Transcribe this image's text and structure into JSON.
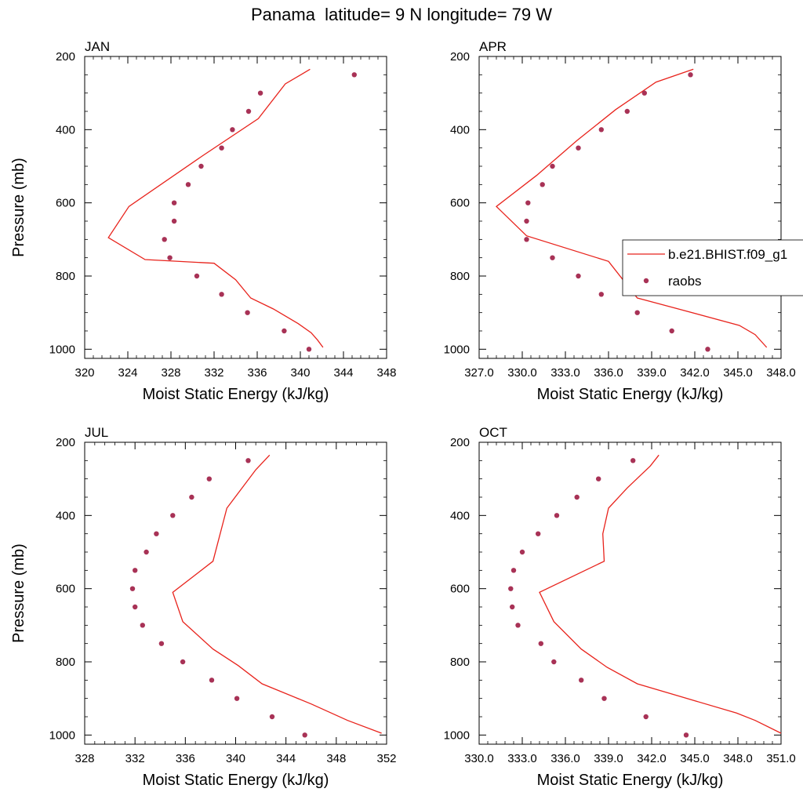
{
  "figure_title": "Panama  latitude= 9 N longitude= 79 W",
  "legend": {
    "model_label": "b.e21.BHIST.f09_g1",
    "obs_label": "raobs",
    "model_color": "#e8231c",
    "obs_color": "#a83256",
    "placement": "right-middle (over APR panel)"
  },
  "chart_data": [
    {
      "type": "line+scatter",
      "panel": "JAN",
      "title": "JAN",
      "xlabel": "Moist Static Energy (kJ/kg)",
      "ylabel": "Pressure (mb)",
      "xlim": [
        320,
        348
      ],
      "ylim": [
        1025,
        200
      ],
      "y_inverted": true,
      "xticks": [
        320,
        324,
        328,
        332,
        336,
        340,
        344,
        348
      ],
      "xtick_labels": [
        "320",
        "324",
        "328",
        "332",
        "336",
        "340",
        "344",
        "348"
      ],
      "yticks": [
        200,
        400,
        600,
        800,
        1000
      ],
      "ytick_labels": [
        "200",
        "400",
        "600",
        "800",
        "1000"
      ],
      "series": [
        {
          "name": "b.e21.BHIST.f09_g1",
          "kind": "line",
          "x": [
            342.1,
            341.6,
            341.0,
            339.8,
            337.5,
            335.4,
            334.0,
            332.0,
            325.6,
            322.2,
            324.1,
            331.0,
            336.1,
            338.6,
            340.9
          ],
          "y": [
            995,
            975,
            955,
            930,
            890,
            860,
            810,
            765,
            755,
            695,
            610,
            470,
            370,
            275,
            235
          ]
        },
        {
          "name": "raobs",
          "kind": "scatter",
          "x": [
            340.8,
            338.5,
            335.1,
            332.7,
            330.4,
            327.9,
            327.4,
            328.3,
            328.3,
            329.6,
            330.8,
            332.7,
            333.7,
            335.2,
            336.3,
            345.0
          ],
          "y": [
            1000,
            950,
            900,
            850,
            800,
            750,
            700,
            650,
            600,
            550,
            500,
            450,
            400,
            350,
            300,
            250
          ]
        }
      ]
    },
    {
      "type": "line+scatter",
      "panel": "APR",
      "title": "APR",
      "xlabel": "Moist Static Energy (kJ/kg)",
      "ylabel": "",
      "xlim": [
        327,
        348
      ],
      "ylim": [
        1025,
        200
      ],
      "y_inverted": true,
      "xticks": [
        327,
        330,
        333,
        336,
        339,
        342,
        345,
        348
      ],
      "xtick_labels": [
        "327.0",
        "330.0",
        "333.0",
        "336.0",
        "339.0",
        "342.0",
        "345.0",
        "348.0"
      ],
      "yticks": [
        200,
        400,
        600,
        800,
        1000
      ],
      "ytick_labels": [
        "200",
        "400",
        "600",
        "800",
        "1000"
      ],
      "series": [
        {
          "name": "b.e21.BHIST.f09_g1",
          "kind": "line",
          "x": [
            347.0,
            346.2,
            345.1,
            340.4,
            338.0,
            336.0,
            330.3,
            328.2,
            331.0,
            333.8,
            336.5,
            339.3,
            341.9
          ],
          "y": [
            995,
            960,
            935,
            885,
            860,
            760,
            690,
            610,
            525,
            430,
            345,
            270,
            235
          ]
        },
        {
          "name": "raobs",
          "kind": "scatter",
          "x": [
            342.9,
            340.4,
            338.0,
            335.5,
            333.9,
            332.1,
            330.3,
            330.3,
            330.4,
            331.4,
            332.1,
            333.9,
            335.5,
            337.3,
            338.5,
            341.7
          ],
          "y": [
            1000,
            950,
            900,
            850,
            800,
            750,
            700,
            650,
            600,
            550,
            500,
            450,
            400,
            350,
            300,
            250
          ]
        }
      ]
    },
    {
      "type": "line+scatter",
      "panel": "JUL",
      "title": "JUL",
      "xlabel": "Moist Static Energy (kJ/kg)",
      "ylabel": "Pressure (mb)",
      "xlim": [
        328,
        352
      ],
      "ylim": [
        1025,
        200
      ],
      "y_inverted": true,
      "xticks": [
        328,
        332,
        336,
        340,
        344,
        348,
        352
      ],
      "xtick_labels": [
        "328",
        "332",
        "336",
        "340",
        "344",
        "348",
        "352"
      ],
      "yticks": [
        200,
        400,
        600,
        800,
        1000
      ],
      "ytick_labels": [
        "200",
        "400",
        "600",
        "800",
        "1000"
      ],
      "series": [
        {
          "name": "b.e21.BHIST.f09_g1",
          "kind": "line",
          "x": [
            351.6,
            348.9,
            346.0,
            342.1,
            340.2,
            338.2,
            335.8,
            335.0,
            338.2,
            339.3,
            341.6,
            342.7
          ],
          "y": [
            995,
            960,
            915,
            860,
            810,
            765,
            690,
            610,
            525,
            380,
            275,
            235
          ]
        },
        {
          "name": "raobs",
          "kind": "scatter",
          "x": [
            345.5,
            342.9,
            340.1,
            338.1,
            335.8,
            334.1,
            332.6,
            332.0,
            331.8,
            332.0,
            332.9,
            333.7,
            335.0,
            336.5,
            337.9,
            341.0
          ],
          "y": [
            1000,
            950,
            900,
            850,
            800,
            750,
            700,
            650,
            600,
            550,
            500,
            450,
            400,
            350,
            300,
            250
          ]
        }
      ]
    },
    {
      "type": "line+scatter",
      "panel": "OCT",
      "title": "OCT",
      "xlabel": "Moist Static Energy (kJ/kg)",
      "ylabel": "",
      "xlim": [
        330,
        351
      ],
      "ylim": [
        1025,
        200
      ],
      "y_inverted": true,
      "xticks": [
        330,
        333,
        336,
        339,
        342,
        345,
        348,
        351
      ],
      "xtick_labels": [
        "330.0",
        "333.0",
        "336.0",
        "339.0",
        "342.0",
        "345.0",
        "348.0",
        "351.0"
      ],
      "yticks": [
        200,
        400,
        600,
        800,
        1000
      ],
      "ytick_labels": [
        "200",
        "400",
        "600",
        "800",
        "1000"
      ],
      "series": [
        {
          "name": "b.e21.BHIST.f09_g1",
          "kind": "line",
          "x": [
            351.0,
            349.2,
            347.9,
            341.0,
            338.9,
            337.1,
            335.2,
            334.2,
            338.7,
            338.6,
            339.0,
            340.3,
            341.9,
            342.5
          ],
          "y": [
            995,
            960,
            940,
            860,
            815,
            765,
            690,
            610,
            525,
            450,
            380,
            325,
            265,
            235
          ]
        },
        {
          "name": "raobs",
          "kind": "scatter",
          "x": [
            344.4,
            341.6,
            338.7,
            337.1,
            335.2,
            334.3,
            332.7,
            332.3,
            332.2,
            332.4,
            333.0,
            334.1,
            335.4,
            336.8,
            338.3,
            340.7
          ],
          "y": [
            1000,
            950,
            900,
            850,
            800,
            750,
            700,
            650,
            600,
            550,
            500,
            450,
            400,
            350,
            300,
            250
          ]
        }
      ]
    }
  ]
}
